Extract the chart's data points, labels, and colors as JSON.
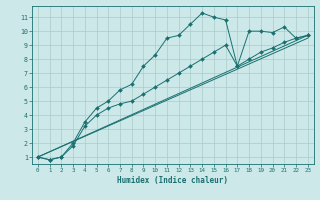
{
  "xlabel": "Humidex (Indice chaleur)",
  "background_color": "#cce8e8",
  "grid_color": "#aacccc",
  "line_color": "#1a7070",
  "xlim": [
    -0.5,
    23.5
  ],
  "ylim": [
    0.5,
    11.8
  ],
  "yticks": [
    1,
    2,
    3,
    4,
    5,
    6,
    7,
    8,
    9,
    10,
    11
  ],
  "xticks": [
    0,
    1,
    2,
    3,
    4,
    5,
    6,
    7,
    8,
    9,
    10,
    11,
    12,
    13,
    14,
    15,
    16,
    17,
    18,
    19,
    20,
    21,
    22,
    23
  ],
  "series1_x": [
    0,
    1,
    2,
    3,
    4,
    5,
    6,
    7,
    8,
    9,
    10,
    11,
    12,
    13,
    14,
    15,
    16,
    17,
    18,
    19,
    20,
    21,
    22,
    23
  ],
  "series1_y": [
    1.0,
    0.8,
    1.0,
    2.0,
    3.5,
    4.5,
    5.0,
    5.8,
    6.2,
    7.5,
    8.3,
    9.5,
    9.7,
    10.5,
    11.3,
    11.0,
    10.8,
    7.5,
    10.0,
    10.0,
    9.9,
    10.3,
    9.5,
    9.7
  ],
  "series2_x": [
    0,
    1,
    2,
    3,
    4,
    5,
    6,
    7,
    8,
    9,
    10,
    11,
    12,
    13,
    14,
    15,
    16,
    17,
    18,
    19,
    20,
    21,
    22,
    23
  ],
  "series2_y": [
    1.0,
    0.8,
    1.0,
    1.8,
    3.2,
    4.0,
    4.5,
    4.8,
    5.0,
    5.5,
    6.0,
    6.5,
    7.0,
    7.5,
    8.0,
    8.5,
    9.0,
    7.5,
    8.0,
    8.5,
    8.8,
    9.2,
    9.5,
    9.7
  ],
  "line1_x": [
    0,
    23
  ],
  "line1_y": [
    1.0,
    9.7
  ],
  "line2_x": [
    0,
    23
  ],
  "line2_y": [
    1.0,
    9.5
  ]
}
